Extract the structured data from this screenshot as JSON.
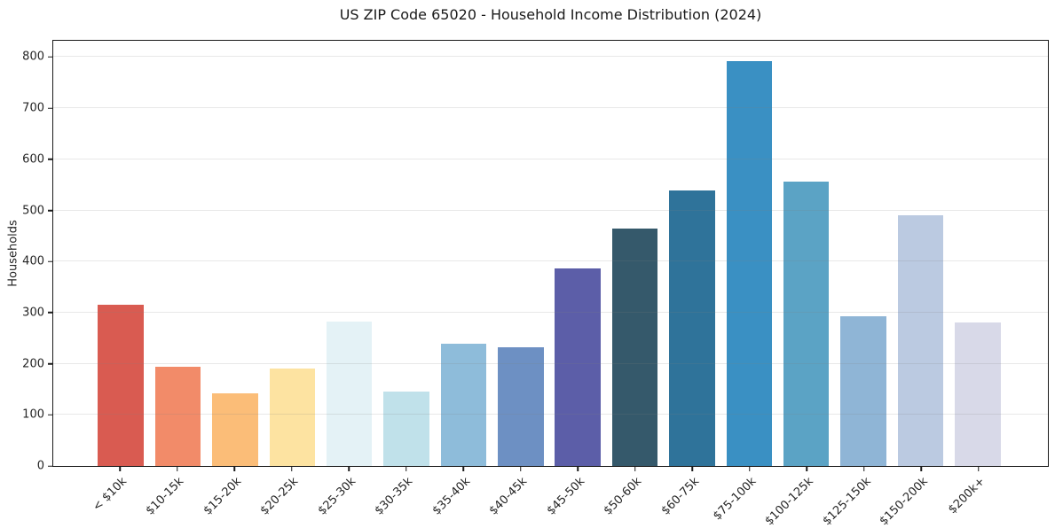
{
  "chart_data": {
    "type": "bar",
    "title": "US ZIP Code 65020 - Household Income Distribution (2024)",
    "xlabel": "",
    "ylabel": "Households",
    "categories": [
      "< $10k",
      "$10-15k",
      "$15-20k",
      "$20-25k",
      "$25-30k",
      "$30-35k",
      "$35-40k",
      "$40-45k",
      "$45-50k",
      "$50-60k",
      "$60-75k",
      "$75-100k",
      "$100-125k",
      "$125-150k",
      "$150-200k",
      "$200k+"
    ],
    "values": [
      315,
      195,
      143,
      190,
      282,
      146,
      240,
      233,
      386,
      464,
      539,
      792,
      556,
      293,
      490,
      281
    ],
    "bar_colors": [
      "#d95b51",
      "#f28b69",
      "#fbbd78",
      "#fde3a1",
      "#e4f2f6",
      "#c0e1ea",
      "#8ebcda",
      "#6d90c3",
      "#5c5ea8",
      "#35596b",
      "#2f739a",
      "#3a90c3",
      "#5ba3c5",
      "#8fb5d6",
      "#bbcae1",
      "#d8d9e8"
    ],
    "yticks": [
      0,
      100,
      200,
      300,
      400,
      500,
      600,
      700,
      800
    ],
    "ylim": [
      0,
      832
    ],
    "grid": "horizontal-light",
    "legend": "none",
    "x_tick_rotation_deg": 45,
    "colors": {
      "background": "#ffffff",
      "text": "#262626",
      "spine": "#1a1a1a",
      "gridline": "#e9e9e9"
    }
  }
}
